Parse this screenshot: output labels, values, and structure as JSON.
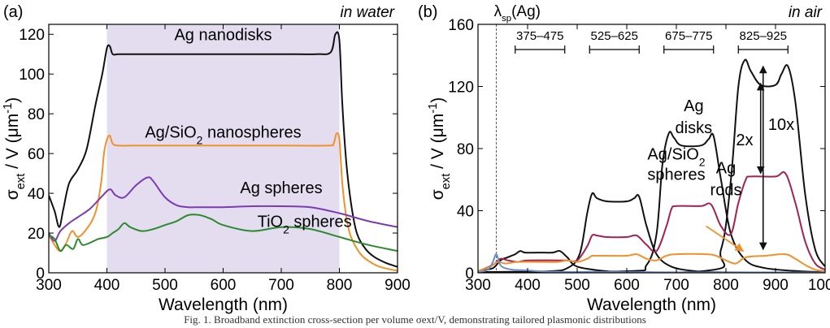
{
  "caption": "Fig. 1. Broadband extinction cross-section per volume σext/V, demonstrating tailored plasmonic distributions",
  "chart_data": [
    {
      "panel": "a",
      "panel_label": "(a)",
      "type": "line",
      "annotation": "in water",
      "xlabel": "Wavelength (nm)",
      "ylabel_main": "σ",
      "ylabel_sub": "ext",
      "ylabel_rest": " / V (μm",
      "ylabel_sup": "-1",
      "ylabel_end": ")",
      "xlim": [
        300,
        900
      ],
      "ylim": [
        0,
        125
      ],
      "xticks": [
        300,
        400,
        500,
        600,
        700,
        800,
        900
      ],
      "yticks": [
        0,
        20,
        40,
        60,
        80,
        100,
        120
      ],
      "shaded_band": [
        400,
        800
      ],
      "shade_color": "#e4ddef",
      "series": [
        {
          "name": "Ag nanodisks",
          "color": "#111111",
          "x": [
            300,
            310,
            318,
            325,
            335,
            350,
            365,
            380,
            392,
            400,
            405,
            410,
            420,
            450,
            500,
            600,
            700,
            760,
            785,
            793,
            800,
            805,
            812,
            820,
            830,
            845,
            860,
            880,
            900
          ],
          "y": [
            39,
            31,
            23,
            32,
            45,
            52,
            62,
            84,
            100,
            113,
            114,
            110,
            110,
            110,
            110,
            110,
            110,
            110,
            111,
            120,
            117,
            85,
            55,
            35,
            20,
            12,
            8,
            5,
            3
          ]
        },
        {
          "name": "Ag/SiO",
          "name_sub": "2",
          "name_rest": " nanospheres",
          "color": "#f0912c",
          "x": [
            300,
            310,
            320,
            330,
            340,
            350,
            365,
            380,
            390,
            395,
            400,
            405,
            410,
            420,
            450,
            500,
            600,
            700,
            780,
            790,
            795,
            800,
            805,
            812,
            820,
            835,
            850,
            870,
            900
          ],
          "y": [
            19,
            14,
            11,
            15,
            21,
            18,
            22,
            30,
            45,
            60,
            67,
            69,
            65,
            64,
            64,
            64,
            64,
            64,
            64,
            65,
            70,
            67,
            45,
            28,
            18,
            10,
            6,
            3,
            1
          ]
        },
        {
          "name": "Ag spheres",
          "color": "#7a3bb4",
          "x": [
            300,
            310,
            320,
            335,
            350,
            370,
            390,
            405,
            415,
            430,
            450,
            470,
            480,
            500,
            520,
            540,
            560,
            600,
            650,
            700,
            750,
            800,
            850,
            900
          ],
          "y": [
            20,
            16,
            21,
            25,
            28,
            32,
            38,
            42,
            39,
            38,
            44,
            48,
            46,
            38,
            34,
            33,
            33,
            33,
            33.5,
            33.5,
            33,
            30,
            26,
            23
          ]
        },
        {
          "name": "TiO",
          "name_sub": "2",
          "name_rest": " spheres",
          "color": "#2b8a2e",
          "x": [
            300,
            310,
            320,
            330,
            342,
            350,
            358,
            370,
            385,
            400,
            410,
            420,
            430,
            440,
            460,
            480,
            500,
            520,
            540,
            560,
            580,
            600,
            650,
            700,
            750,
            800,
            850,
            900
          ],
          "y": [
            19,
            17,
            11,
            14,
            12,
            17,
            14,
            15,
            17,
            18,
            20,
            22,
            25,
            23,
            21,
            22,
            24,
            26,
            29,
            29,
            27,
            24,
            21,
            23,
            22,
            18,
            14,
            11
          ]
        }
      ],
      "labels": [
        {
          "series": 0,
          "text": "Ag nanodisks"
        },
        {
          "series": 1,
          "text": "Ag/SiO",
          "sub": "2",
          "rest": " nanospheres"
        },
        {
          "series": 2,
          "text": "Ag spheres"
        },
        {
          "series": 3,
          "text": "TiO",
          "sub": "2",
          "rest": " spheres"
        }
      ]
    },
    {
      "panel": "b",
      "panel_label": "(b)",
      "type": "line",
      "annotation": "in air",
      "top_label_main": "λ",
      "top_label_sub": "sp",
      "top_label_rest": "(Ag)",
      "xlabel": "Wavelength (nm)",
      "ylabel_main": "σ",
      "ylabel_sub": "ext",
      "ylabel_rest": " / V (μm",
      "ylabel_sup": "-1",
      "ylabel_end": ")",
      "xlim": [
        300,
        1000
      ],
      "ylim": [
        0,
        160
      ],
      "xticks": [
        300,
        400,
        500,
        600,
        700,
        800,
        900,
        1000
      ],
      "yticks": [
        0,
        40,
        80,
        120,
        160
      ],
      "sp_line_x": 337,
      "ranges": [
        {
          "label": "375–475",
          "from": 375,
          "to": 475
        },
        {
          "label": "525–625",
          "from": 525,
          "to": 625
        },
        {
          "label": "675–775",
          "from": 675,
          "to": 775
        },
        {
          "label": "825–925",
          "from": 825,
          "to": 925
        }
      ],
      "series": [
        {
          "name": "Ag disks",
          "color": "#111111",
          "x": [
            300,
            330,
            345,
            360,
            375,
            385,
            395,
            420,
            450,
            465,
            480,
            500,
            560,
            600,
            640,
            700,
            760,
            800,
            830,
            880,
            920,
            960,
            1000
          ],
          "y": [
            1,
            3,
            8,
            10,
            12,
            14,
            13,
            13,
            13,
            14,
            10,
            4,
            1,
            0.5,
            0.3,
            0.2,
            0.1,
            0.1,
            0.1,
            0.1,
            0.1,
            0.1,
            0.1
          ]
        },
        {
          "name": "Ag disks",
          "color": "#111111",
          "x": [
            300,
            440,
            480,
            505,
            520,
            530,
            540,
            560,
            600,
            615,
            625,
            640,
            660,
            690,
            740,
            800,
            1000
          ],
          "y": [
            0.5,
            1,
            3,
            12,
            38,
            51,
            48,
            46,
            46,
            48,
            49,
            30,
            12,
            4,
            1,
            0.3,
            0.1
          ]
        },
        {
          "name": "Ag disks",
          "color": "#111111",
          "x": [
            300,
            600,
            640,
            660,
            672,
            685,
            695,
            710,
            750,
            765,
            775,
            790,
            810,
            840,
            880,
            950,
            1000
          ],
          "y": [
            0.5,
            1,
            5,
            25,
            70,
            90,
            87,
            82,
            82,
            86,
            88,
            60,
            25,
            8,
            3,
            1,
            0.5
          ]
        },
        {
          "name": "Ag disks",
          "color": "#111111",
          "x": [
            300,
            750,
            790,
            810,
            825,
            838,
            850,
            870,
            900,
            912,
            925,
            940,
            960,
            980,
            1000
          ],
          "y": [
            0.5,
            1,
            15,
            60,
            120,
            137,
            130,
            121,
            121,
            128,
            133,
            110,
            50,
            15,
            4
          ]
        },
        {
          "name": "Ag rods",
          "color": "#a3224f",
          "x": [
            300,
            330,
            345,
            360,
            380,
            400,
            460,
            480,
            500,
            520,
            530,
            540,
            560,
            600,
            620,
            640,
            660,
            680,
            690,
            700,
            750,
            770,
            790,
            810,
            825,
            840,
            850,
            900,
            920,
            940,
            960,
            980,
            1000
          ],
          "y": [
            1,
            5,
            9,
            8,
            7,
            8,
            8,
            8,
            8,
            17,
            24,
            24,
            23,
            23,
            24,
            18,
            14,
            30,
            41,
            43,
            43,
            44,
            30,
            25,
            45,
            60,
            62,
            62,
            64,
            45,
            20,
            6,
            2
          ]
        },
        {
          "name": "Ag/SiO2 spheres",
          "color": "#f0912c",
          "x": [
            300,
            325,
            340,
            355,
            380,
            420,
            460,
            480,
            500,
            520,
            530,
            540,
            600,
            620,
            640,
            660,
            680,
            700,
            760,
            780,
            800,
            820,
            840,
            880,
            920,
            940,
            960,
            980,
            1000
          ],
          "y": [
            1,
            4,
            7,
            6,
            7,
            7,
            7,
            8,
            7,
            9,
            11,
            11,
            11,
            12,
            9,
            8,
            11,
            12,
            12,
            11,
            8,
            6,
            10,
            11,
            12,
            9,
            5,
            2,
            1
          ]
        },
        {
          "name": "Ag spheres (blue)",
          "color": "#6f8ec9",
          "x": [
            300,
            320,
            330,
            337,
            345,
            355,
            370,
            400,
            500,
            1000
          ],
          "y": [
            0.5,
            2,
            7,
            12,
            5,
            3,
            2,
            1.5,
            0.5,
            0.2
          ]
        }
      ],
      "labels": [
        {
          "text": "Ag",
          "color": "#111111"
        },
        {
          "text": "disks",
          "color": "#111111"
        },
        {
          "text": "Ag/SiO",
          "sub": "2",
          "color": "#f0912c"
        },
        {
          "text": "spheres",
          "color": "#f0912c"
        },
        {
          "text": "Ag",
          "color": "#a3224f"
        },
        {
          "text": "rods",
          "color": "#a3224f"
        },
        {
          "text": "2x",
          "color": "#111111"
        },
        {
          "text": "10x",
          "color": "#111111"
        }
      ],
      "arrows": [
        {
          "kind": "double",
          "x": 870,
          "y_from": 122,
          "y_to": 64,
          "label_index": 6
        },
        {
          "kind": "double",
          "x": 875,
          "y_from": 133,
          "y_to": 15,
          "label_index": 7
        },
        {
          "kind": "orange",
          "from": [
            760,
            30
          ],
          "to": [
            835,
            14
          ]
        }
      ]
    }
  ]
}
